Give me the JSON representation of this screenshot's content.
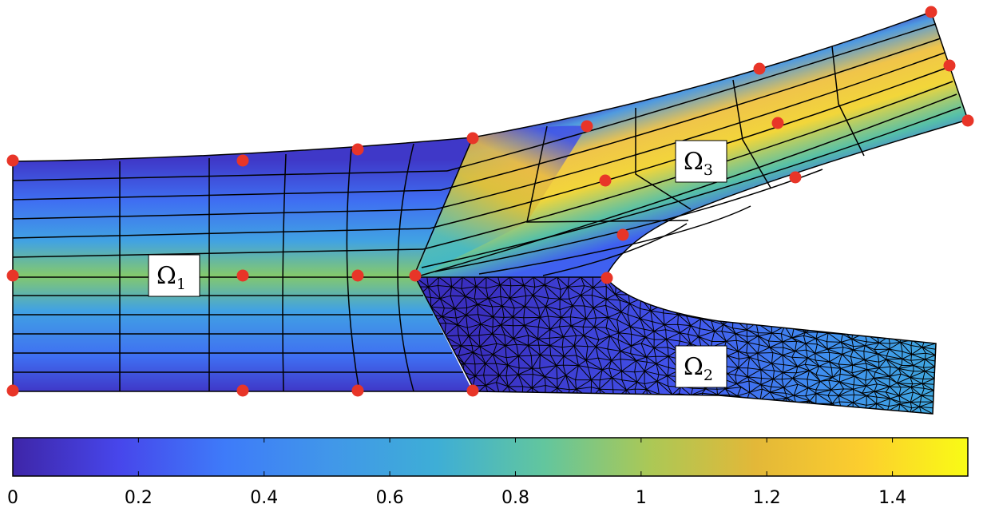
{
  "regions": [
    {
      "id": "omega1",
      "symbol": "Ω",
      "subscript": "1"
    },
    {
      "id": "omega2",
      "symbol": "Ω",
      "subscript": "2"
    },
    {
      "id": "omega3",
      "symbol": "Ω",
      "subscript": "3"
    }
  ],
  "colorbar": {
    "min": 0,
    "max": 1.52,
    "ticks": [
      "0",
      "0.2",
      "0.4",
      "0.6",
      "0.8",
      "1",
      "1.2",
      "1.4"
    ],
    "tick_values": [
      0,
      0.2,
      0.4,
      0.6,
      0.8,
      1.0,
      1.2,
      1.4
    ],
    "colormap": [
      "#3e26a8",
      "#4746eb",
      "#3e7bf9",
      "#4197e9",
      "#3eaed6",
      "#62c69e",
      "#abc856",
      "#e3b838",
      "#fcce2e",
      "#f9fb15"
    ]
  },
  "colors": {
    "mesh_line": "#000000",
    "control_point": "#e83528",
    "label_box_fill": "#ffffff",
    "label_box_stroke": "#000000"
  }
}
